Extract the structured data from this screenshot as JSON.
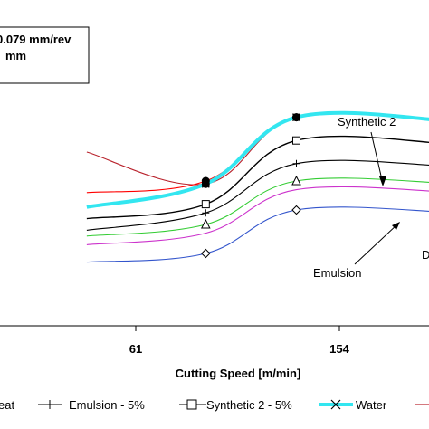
{
  "chart_data": {
    "type": "line",
    "xlabel": "Cutting Speed [m/min]",
    "x_tick_labels": [
      "61",
      "154"
    ],
    "parameters": [
      "0.079 mm/rev",
      "mm"
    ],
    "annotations": [
      "Synthetic 2",
      "Emulsion",
      "D"
    ],
    "series": [
      {
        "name": "eat",
        "color": "#ff0000",
        "marker": "none",
        "values": [
          0.46,
          0.5,
          0.72
        ]
      },
      {
        "name": "Emulsion - 5%",
        "color": "#000000",
        "marker": "plus",
        "values": [
          0.33,
          0.39,
          0.56
        ]
      },
      {
        "name": "Synthetic 2 - 5%",
        "color": "#000000",
        "marker": "square",
        "values": [
          0.37,
          0.42,
          0.64
        ]
      },
      {
        "name": "Water",
        "color": "#33e6f0",
        "marker": "x",
        "values": [
          0.41,
          0.49,
          0.72
        ]
      },
      {
        "name": "",
        "color": "#b8202a",
        "marker": "none",
        "values": [
          0.6,
          0.49,
          0.72
        ]
      },
      {
        "name": "",
        "color": "#33cc33",
        "marker": "triangle",
        "values": [
          0.31,
          0.35,
          0.5
        ]
      },
      {
        "name": "",
        "color": "#cc33cc",
        "marker": "none",
        "values": [
          0.28,
          0.32,
          0.47
        ]
      },
      {
        "name": "",
        "color": "#3355cc",
        "marker": "diamond",
        "values": [
          0.22,
          0.25,
          0.4
        ]
      }
    ],
    "x_values": [
      -61,
      61,
      154
    ],
    "xlim": [
      -150,
      290
    ],
    "ylim": [
      0,
      1
    ],
    "grid": false,
    "legend_position": "bottom"
  }
}
